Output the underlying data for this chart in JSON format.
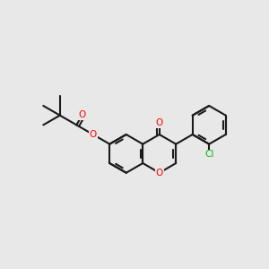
{
  "background_color": "#e8e8e8",
  "bond_color": "#1a1a1a",
  "bond_width": 1.5,
  "atom_colors": {
    "O": "#ff0000",
    "Cl": "#00bb00",
    "C": "#1a1a1a"
  },
  "figsize": [
    3.0,
    3.0
  ],
  "dpi": 100
}
